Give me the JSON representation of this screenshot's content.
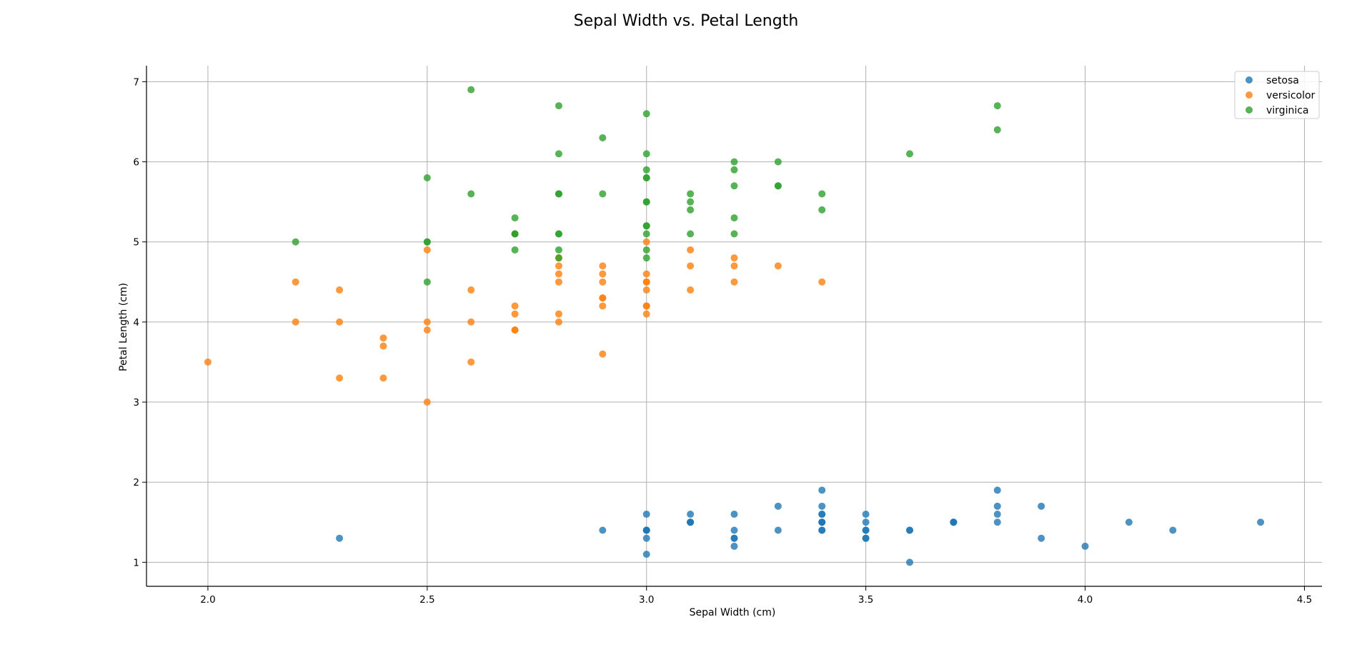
{
  "chart_data": {
    "type": "scatter",
    "title": "Sepal Width vs. Petal Length",
    "xlabel": "Sepal Width (cm)",
    "ylabel": "Petal Length (cm)",
    "xlim": [
      1.86,
      4.54
    ],
    "ylim": [
      0.7,
      7.2
    ],
    "xticks": [
      2.0,
      2.5,
      3.0,
      3.5,
      4.0,
      4.5
    ],
    "xtick_labels": [
      "2.0",
      "2.5",
      "3.0",
      "3.5",
      "4.0",
      "4.5"
    ],
    "yticks": [
      1,
      2,
      3,
      4,
      5,
      6,
      7
    ],
    "ytick_labels": [
      "1",
      "2",
      "3",
      "4",
      "5",
      "6",
      "7"
    ],
    "grid": true,
    "legend_position": "top-right",
    "series": [
      {
        "name": "setosa",
        "color": "#1f77b4",
        "points": [
          [
            3.5,
            1.4
          ],
          [
            3.0,
            1.4
          ],
          [
            3.2,
            1.3
          ],
          [
            3.1,
            1.5
          ],
          [
            3.6,
            1.4
          ],
          [
            3.9,
            1.7
          ],
          [
            3.4,
            1.4
          ],
          [
            3.4,
            1.5
          ],
          [
            2.9,
            1.4
          ],
          [
            3.1,
            1.5
          ],
          [
            3.7,
            1.5
          ],
          [
            3.4,
            1.6
          ],
          [
            3.0,
            1.4
          ],
          [
            3.0,
            1.1
          ],
          [
            4.0,
            1.2
          ],
          [
            4.4,
            1.5
          ],
          [
            3.9,
            1.3
          ],
          [
            3.5,
            1.4
          ],
          [
            3.8,
            1.7
          ],
          [
            3.8,
            1.5
          ],
          [
            3.4,
            1.7
          ],
          [
            3.7,
            1.5
          ],
          [
            3.6,
            1.0
          ],
          [
            3.3,
            1.7
          ],
          [
            3.4,
            1.9
          ],
          [
            3.0,
            1.6
          ],
          [
            3.4,
            1.6
          ],
          [
            3.5,
            1.5
          ],
          [
            3.4,
            1.4
          ],
          [
            3.2,
            1.6
          ],
          [
            3.1,
            1.6
          ],
          [
            3.4,
            1.5
          ],
          [
            4.1,
            1.5
          ],
          [
            4.2,
            1.4
          ],
          [
            3.1,
            1.5
          ],
          [
            3.2,
            1.2
          ],
          [
            3.5,
            1.3
          ],
          [
            3.6,
            1.4
          ],
          [
            3.0,
            1.3
          ],
          [
            3.4,
            1.5
          ],
          [
            3.5,
            1.3
          ],
          [
            2.3,
            1.3
          ],
          [
            3.2,
            1.3
          ],
          [
            3.5,
            1.6
          ],
          [
            3.8,
            1.9
          ],
          [
            3.0,
            1.4
          ],
          [
            3.8,
            1.6
          ],
          [
            3.2,
            1.4
          ],
          [
            3.7,
            1.5
          ],
          [
            3.3,
            1.4
          ]
        ]
      },
      {
        "name": "versicolor",
        "color": "#ff7f0e",
        "points": [
          [
            3.2,
            4.7
          ],
          [
            3.2,
            4.5
          ],
          [
            3.1,
            4.9
          ],
          [
            2.3,
            4.0
          ],
          [
            2.8,
            4.6
          ],
          [
            2.8,
            4.5
          ],
          [
            3.3,
            4.7
          ],
          [
            2.4,
            3.3
          ],
          [
            2.9,
            4.6
          ],
          [
            2.7,
            3.9
          ],
          [
            2.0,
            3.5
          ],
          [
            3.0,
            4.2
          ],
          [
            2.2,
            4.0
          ],
          [
            2.9,
            4.7
          ],
          [
            2.9,
            3.6
          ],
          [
            3.1,
            4.4
          ],
          [
            3.0,
            4.5
          ],
          [
            2.7,
            4.1
          ],
          [
            2.2,
            4.5
          ],
          [
            2.5,
            3.9
          ],
          [
            3.2,
            4.8
          ],
          [
            2.8,
            4.0
          ],
          [
            2.5,
            4.9
          ],
          [
            2.8,
            4.7
          ],
          [
            2.9,
            4.3
          ],
          [
            3.0,
            4.4
          ],
          [
            2.8,
            4.8
          ],
          [
            3.0,
            5.0
          ],
          [
            2.9,
            4.5
          ],
          [
            2.6,
            3.5
          ],
          [
            2.4,
            3.8
          ],
          [
            2.4,
            3.7
          ],
          [
            2.7,
            3.9
          ],
          [
            2.7,
            5.1
          ],
          [
            3.0,
            4.5
          ],
          [
            3.4,
            4.5
          ],
          [
            3.1,
            4.7
          ],
          [
            2.3,
            4.4
          ],
          [
            3.0,
            4.1
          ],
          [
            2.5,
            4.0
          ],
          [
            2.6,
            4.4
          ],
          [
            3.0,
            4.6
          ],
          [
            2.6,
            4.0
          ],
          [
            2.3,
            3.3
          ],
          [
            2.7,
            4.2
          ],
          [
            3.0,
            4.2
          ],
          [
            2.9,
            4.2
          ],
          [
            2.9,
            4.3
          ],
          [
            2.5,
            3.0
          ],
          [
            2.8,
            4.1
          ]
        ]
      },
      {
        "name": "virginica",
        "color": "#2ca02c",
        "points": [
          [
            3.3,
            6.0
          ],
          [
            2.7,
            5.1
          ],
          [
            3.0,
            5.9
          ],
          [
            2.9,
            5.6
          ],
          [
            3.0,
            5.8
          ],
          [
            3.0,
            6.6
          ],
          [
            2.5,
            4.5
          ],
          [
            2.9,
            6.3
          ],
          [
            2.5,
            5.8
          ],
          [
            3.6,
            6.1
          ],
          [
            3.2,
            5.1
          ],
          [
            2.7,
            5.3
          ],
          [
            3.0,
            5.5
          ],
          [
            2.5,
            5.0
          ],
          [
            2.8,
            5.1
          ],
          [
            3.2,
            5.3
          ],
          [
            3.0,
            5.5
          ],
          [
            3.8,
            6.7
          ],
          [
            2.6,
            6.9
          ],
          [
            2.2,
            5.0
          ],
          [
            3.2,
            5.7
          ],
          [
            2.8,
            4.9
          ],
          [
            2.8,
            6.7
          ],
          [
            2.7,
            4.9
          ],
          [
            3.3,
            5.7
          ],
          [
            3.2,
            6.0
          ],
          [
            2.8,
            4.8
          ],
          [
            3.0,
            4.9
          ],
          [
            2.8,
            5.6
          ],
          [
            3.0,
            5.8
          ],
          [
            2.8,
            6.1
          ],
          [
            3.8,
            6.4
          ],
          [
            2.8,
            5.6
          ],
          [
            2.8,
            5.1
          ],
          [
            2.6,
            5.6
          ],
          [
            3.0,
            6.1
          ],
          [
            3.4,
            5.6
          ],
          [
            3.1,
            5.5
          ],
          [
            3.0,
            4.8
          ],
          [
            3.1,
            5.4
          ],
          [
            3.1,
            5.6
          ],
          [
            3.1,
            5.1
          ],
          [
            2.7,
            5.1
          ],
          [
            3.2,
            5.9
          ],
          [
            3.3,
            5.7
          ],
          [
            3.0,
            5.2
          ],
          [
            2.5,
            5.0
          ],
          [
            3.0,
            5.2
          ],
          [
            3.4,
            5.4
          ],
          [
            3.0,
            5.1
          ]
        ]
      }
    ]
  }
}
